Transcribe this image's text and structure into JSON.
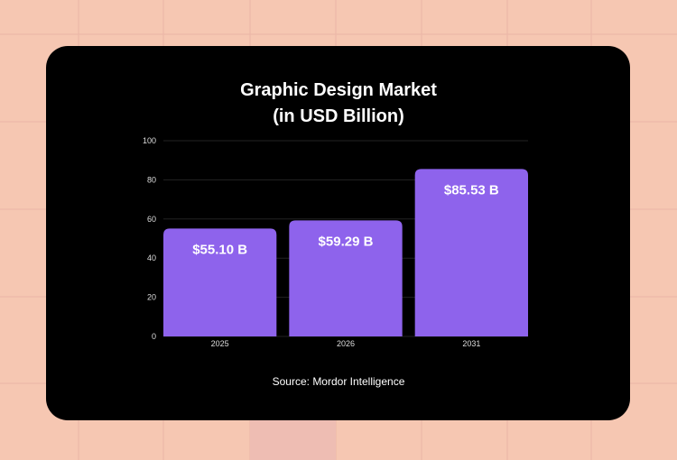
{
  "chart_data": {
    "type": "bar",
    "title": [
      "Graphic Design Market",
      "(in USD Billion)"
    ],
    "categories": [
      "2025",
      "2026",
      "2031"
    ],
    "values": [
      55.1,
      59.29,
      85.53
    ],
    "data_labels": [
      "$55.10 B",
      "$59.29 B",
      "$85.53 B"
    ],
    "xlabel": "",
    "ylabel": "",
    "ylim": [
      0,
      100
    ],
    "yticks": [
      "0",
      "20",
      "40",
      "60",
      "80",
      "100"
    ],
    "grid": true,
    "legend": "none",
    "bar_color": "#8e63ec",
    "source": "Source: Mordor Intelligence"
  },
  "colors": {
    "background": "#f6c7b2",
    "card": "#000000"
  }
}
